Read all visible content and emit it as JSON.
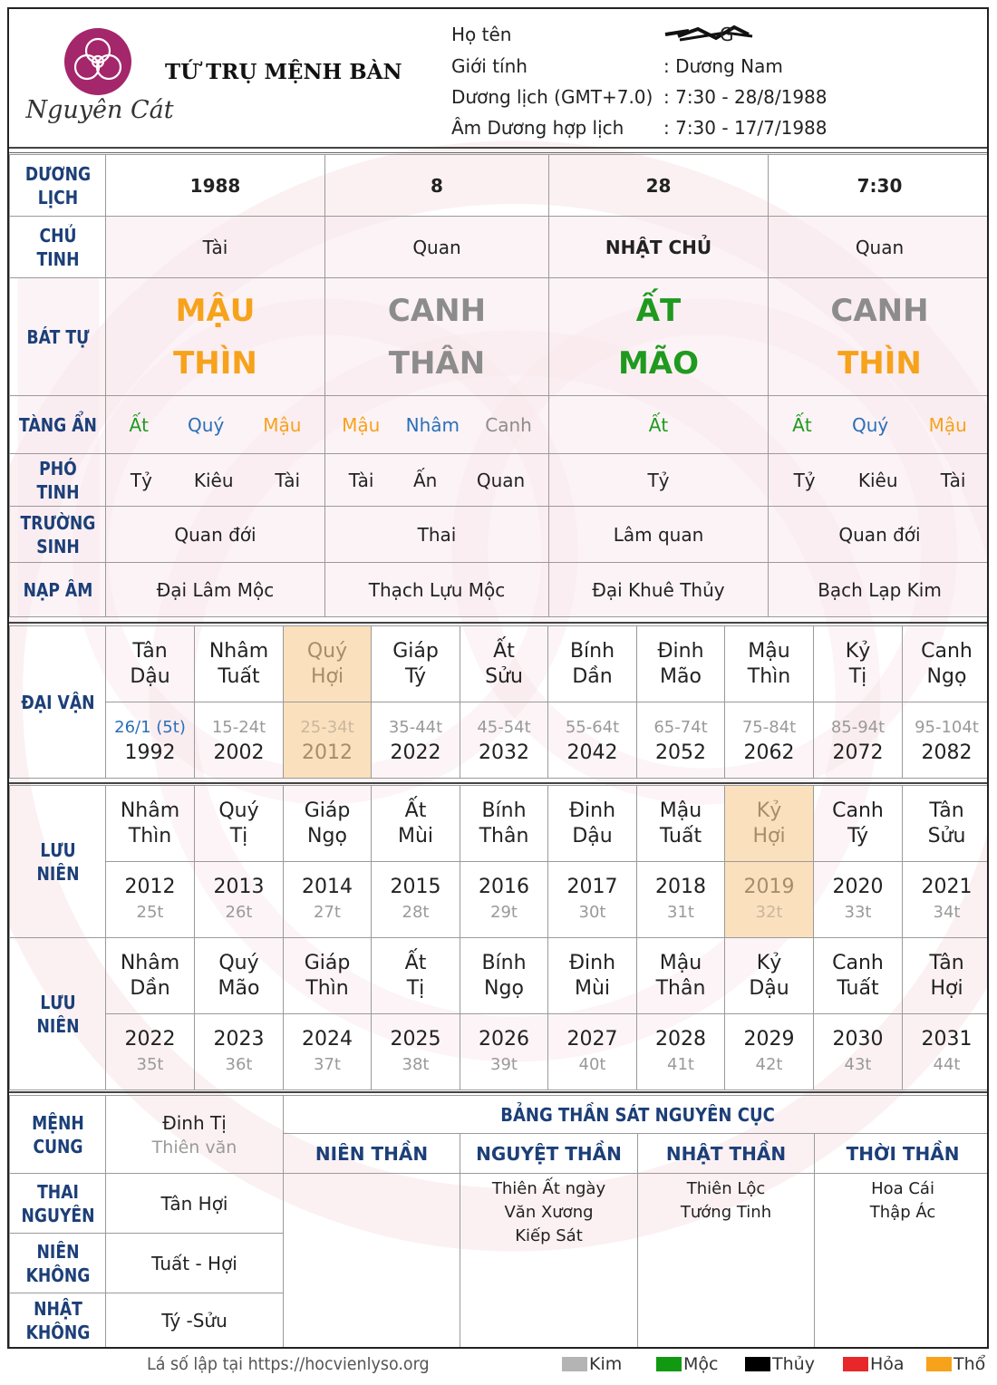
{
  "header": {
    "brand": "Nguyên Cát",
    "title": "TỨ TRỤ MỆNH BÀN",
    "info_rows": [
      {
        "key": "Họ tên",
        "value": "G"
      },
      {
        "key": "Giới tính",
        "value": ": Dương Nam"
      },
      {
        "key": "Dương lịch (GMT+7.0)",
        "value": ": 7:30 - 28/8/1988"
      },
      {
        "key": "Âm Dương hợp lịch",
        "value": ": 7:30 - 17/7/1988"
      }
    ]
  },
  "labels": {
    "duong_lich": [
      "DƯƠNG",
      "LỊCH"
    ],
    "chu_tinh": [
      "CHỦ",
      "TINH"
    ],
    "bat_tu": "BÁT TỰ",
    "tang_an": "TÀNG ẨN",
    "pho_tinh": "PHÓ TINH",
    "truong_sinh": [
      "TRƯỜNG",
      "SINH"
    ],
    "nap_am": "NẠP ÂM",
    "dai_van": "ĐẠI VẬN",
    "luu_nien": "LƯU NIÊN",
    "menh_cung": [
      "MỆNH",
      "CUNG"
    ],
    "thai_nguyen": [
      "THAI",
      "NGUYÊN"
    ],
    "nien_khong": [
      "NIÊN",
      "KHÔNG"
    ],
    "nhat_khong": [
      "NHẬT",
      "KHÔNG"
    ]
  },
  "pillars": [
    {
      "date": "1988",
      "chu_tinh": "Tài",
      "can": "MẬU",
      "chi": "THÌN",
      "can_el": "tho",
      "chi_el": "tho",
      "tang_an": [
        {
          "t": "Ất",
          "el": "moc"
        },
        {
          "t": "Quý",
          "el": "thuy"
        },
        {
          "t": "Mậu",
          "el": "tho"
        }
      ],
      "pho_tinh": [
        "Tỷ",
        "Kiêu",
        "Tài"
      ],
      "truong_sinh": "Quan đới",
      "nap_am": "Đại Lâm Mộc"
    },
    {
      "date": "8",
      "chu_tinh": "Quan",
      "can": "CANH",
      "chi": "THÂN",
      "can_el": "kim",
      "chi_el": "kim",
      "tang_an": [
        {
          "t": "Mậu",
          "el": "tho"
        },
        {
          "t": "Nhâm",
          "el": "thuy"
        },
        {
          "t": "Canh",
          "el": "kim"
        }
      ],
      "pho_tinh": [
        "Tài",
        "Ấn",
        "Quan"
      ],
      "truong_sinh": "Thai",
      "nap_am": "Thạch Lựu Mộc"
    },
    {
      "date": "28",
      "chu_tinh": "NHẬT CHỦ",
      "can": "ẤT",
      "chi": "MÃO",
      "can_el": "moc",
      "chi_el": "moc",
      "tang_an": [
        {
          "t": "Ất",
          "el": "moc"
        }
      ],
      "pho_tinh": [
        "Tỷ"
      ],
      "truong_sinh": "Lâm quan",
      "nap_am": "Đại Khuê Thủy"
    },
    {
      "date": "7:30",
      "chu_tinh": "Quan",
      "can": "CANH",
      "chi": "THÌN",
      "can_el": "kim",
      "chi_el": "tho",
      "tang_an": [
        {
          "t": "Ất",
          "el": "moc"
        },
        {
          "t": "Quý",
          "el": "thuy"
        },
        {
          "t": "Mậu",
          "el": "tho"
        }
      ],
      "pho_tinh": [
        "Tỷ",
        "Kiêu",
        "Tài"
      ],
      "truong_sinh": "Quan đới",
      "nap_am": "Bạch Lạp Kim"
    }
  ],
  "dai_van": [
    {
      "can": "Tân",
      "chi": "Dậu",
      "age": "26/1 (5t)",
      "year": "1992",
      "highlight": false
    },
    {
      "can": "Nhâm",
      "chi": "Tuất",
      "age": "15-24t",
      "year": "2002",
      "highlight": false
    },
    {
      "can": "Quý",
      "chi": "Hợi",
      "age": "25-34t",
      "year": "2012",
      "highlight": true
    },
    {
      "can": "Giáp",
      "chi": "Tý",
      "age": "35-44t",
      "year": "2022",
      "highlight": false
    },
    {
      "can": "Ất",
      "chi": "Sửu",
      "age": "45-54t",
      "year": "2032",
      "highlight": false
    },
    {
      "can": "Bính",
      "chi": "Dần",
      "age": "55-64t",
      "year": "2042",
      "highlight": false
    },
    {
      "can": "Đinh",
      "chi": "Mão",
      "age": "65-74t",
      "year": "2052",
      "highlight": false
    },
    {
      "can": "Mậu",
      "chi": "Thìn",
      "age": "75-84t",
      "year": "2062",
      "highlight": false
    },
    {
      "can": "Kỷ",
      "chi": "Tị",
      "age": "85-94t",
      "year": "2072",
      "highlight": false
    },
    {
      "can": "Canh",
      "chi": "Ngọ",
      "age": "95-104t",
      "year": "2082",
      "highlight": false
    }
  ],
  "luu_nien_1": [
    {
      "can": "Nhâm",
      "chi": "Thìn",
      "year": "2012",
      "age": "25t",
      "highlight": false
    },
    {
      "can": "Quý",
      "chi": "Tị",
      "year": "2013",
      "age": "26t",
      "highlight": false
    },
    {
      "can": "Giáp",
      "chi": "Ngọ",
      "year": "2014",
      "age": "27t",
      "highlight": false
    },
    {
      "can": "Ất",
      "chi": "Mùi",
      "year": "2015",
      "age": "28t",
      "highlight": false
    },
    {
      "can": "Bính",
      "chi": "Thân",
      "year": "2016",
      "age": "29t",
      "highlight": false
    },
    {
      "can": "Đinh",
      "chi": "Dậu",
      "year": "2017",
      "age": "30t",
      "highlight": false
    },
    {
      "can": "Mậu",
      "chi": "Tuất",
      "year": "2018",
      "age": "31t",
      "highlight": false
    },
    {
      "can": "Kỷ",
      "chi": "Hợi",
      "year": "2019",
      "age": "32t",
      "highlight": true
    },
    {
      "can": "Canh",
      "chi": "Tý",
      "year": "2020",
      "age": "33t",
      "highlight": false
    },
    {
      "can": "Tân",
      "chi": "Sửu",
      "year": "2021",
      "age": "34t",
      "highlight": false
    }
  ],
  "luu_nien_2": [
    {
      "can": "Nhâm",
      "chi": "Dần",
      "year": "2022",
      "age": "35t",
      "highlight": false
    },
    {
      "can": "Quý",
      "chi": "Mão",
      "year": "2023",
      "age": "36t",
      "highlight": false
    },
    {
      "can": "Giáp",
      "chi": "Thìn",
      "year": "2024",
      "age": "37t",
      "highlight": false
    },
    {
      "can": "Ất",
      "chi": "Tị",
      "year": "2025",
      "age": "38t",
      "highlight": false
    },
    {
      "can": "Bính",
      "chi": "Ngọ",
      "year": "2026",
      "age": "39t",
      "highlight": false
    },
    {
      "can": "Đinh",
      "chi": "Mùi",
      "year": "2027",
      "age": "40t",
      "highlight": false
    },
    {
      "can": "Mậu",
      "chi": "Thân",
      "year": "2028",
      "age": "41t",
      "highlight": false
    },
    {
      "can": "Kỷ",
      "chi": "Dậu",
      "year": "2029",
      "age": "42t",
      "highlight": false
    },
    {
      "can": "Canh",
      "chi": "Tuất",
      "year": "2030",
      "age": "43t",
      "highlight": false
    },
    {
      "can": "Tân",
      "chi": "Hợi",
      "year": "2031",
      "age": "44t",
      "highlight": false
    }
  ],
  "bottom": {
    "menh_cung": {
      "value": "Đinh Tị",
      "sub": "Thiên văn"
    },
    "thai_nguyen": "Tân Hợi",
    "nien_khong": "Tuất - Hợi",
    "nhat_khong": "Tý -Sửu",
    "than_sat_title": "BẢNG THẦN SÁT NGUYÊN CỤC",
    "than_sat_cols": [
      {
        "head": "NIÊN THẦN",
        "items": []
      },
      {
        "head": "NGUYỆT THẦN",
        "items": [
          "Thiên Ất ngày",
          "Văn Xương",
          "Kiếp Sát"
        ]
      },
      {
        "head": "NHẬT THẦN",
        "items": [
          "Thiên Lộc",
          "Tướng Tinh"
        ]
      },
      {
        "head": "THỜI THẦN",
        "items": [
          "Hoa Cái",
          "Thập Ác"
        ]
      }
    ]
  },
  "footer": {
    "source": "Lá số lập tại https://hocvienlyso.org",
    "legend": [
      {
        "label": "Kim",
        "color": "#b4b4b4"
      },
      {
        "label": "Mộc",
        "color": "#119a11"
      },
      {
        "label": "Thủy",
        "color": "#000000"
      },
      {
        "label": "Hỏa",
        "color": "#e8272a"
      },
      {
        "label": "Thổ",
        "color": "#f6a21b"
      }
    ]
  },
  "colors": {
    "tho": "#f6a21b",
    "kim": "#8c8c8c",
    "moc": "#1f9a1f",
    "thuy": "#2a6fb8",
    "label": "#1c3f78",
    "highlight": "#fbe0bd"
  }
}
